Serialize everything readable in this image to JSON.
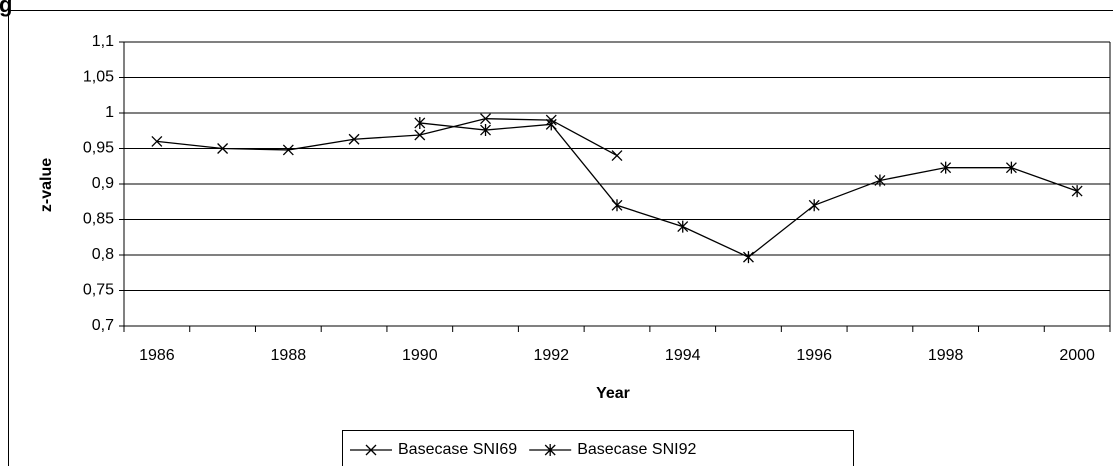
{
  "chart_data": {
    "type": "line",
    "title": "g",
    "x_label": "Year",
    "y_label": "z-value",
    "categories": [
      "1986",
      null,
      "1988",
      null,
      "1990",
      null,
      "1992",
      null,
      "1994",
      null,
      "1996",
      null,
      "1998",
      null,
      "2000"
    ],
    "series": [
      {
        "name": "Basecase SNI69",
        "color": "#000000",
        "marker": "x",
        "values": [
          0.96,
          0.95,
          0.948,
          0.963,
          0.969,
          0.992,
          0.99,
          0.94,
          null,
          null,
          null,
          null,
          null,
          null,
          null
        ]
      },
      {
        "name": "Basecase SNI92",
        "color": "#000000",
        "marker": "asterisk",
        "values": [
          null,
          null,
          null,
          null,
          0.986,
          0.976,
          0.984,
          0.87,
          0.84,
          0.797,
          0.87,
          0.905,
          0.923,
          0.923,
          0.89
        ]
      }
    ],
    "ylim": [
      0.7,
      1.1
    ],
    "yticks": [
      {
        "value": 0.7,
        "label": "0,7"
      },
      {
        "value": 0.75,
        "label": "0,75"
      },
      {
        "value": 0.8,
        "label": "0,8"
      },
      {
        "value": 0.85,
        "label": "0,85"
      },
      {
        "value": 0.9,
        "label": "0,9"
      },
      {
        "value": 0.95,
        "label": "0,95"
      },
      1,
      {
        "value": 1.05,
        "label": "1,05"
      },
      {
        "value": 1.1,
        "label": "1,1"
      }
    ],
    "grid": true,
    "legend": "bottom"
  }
}
